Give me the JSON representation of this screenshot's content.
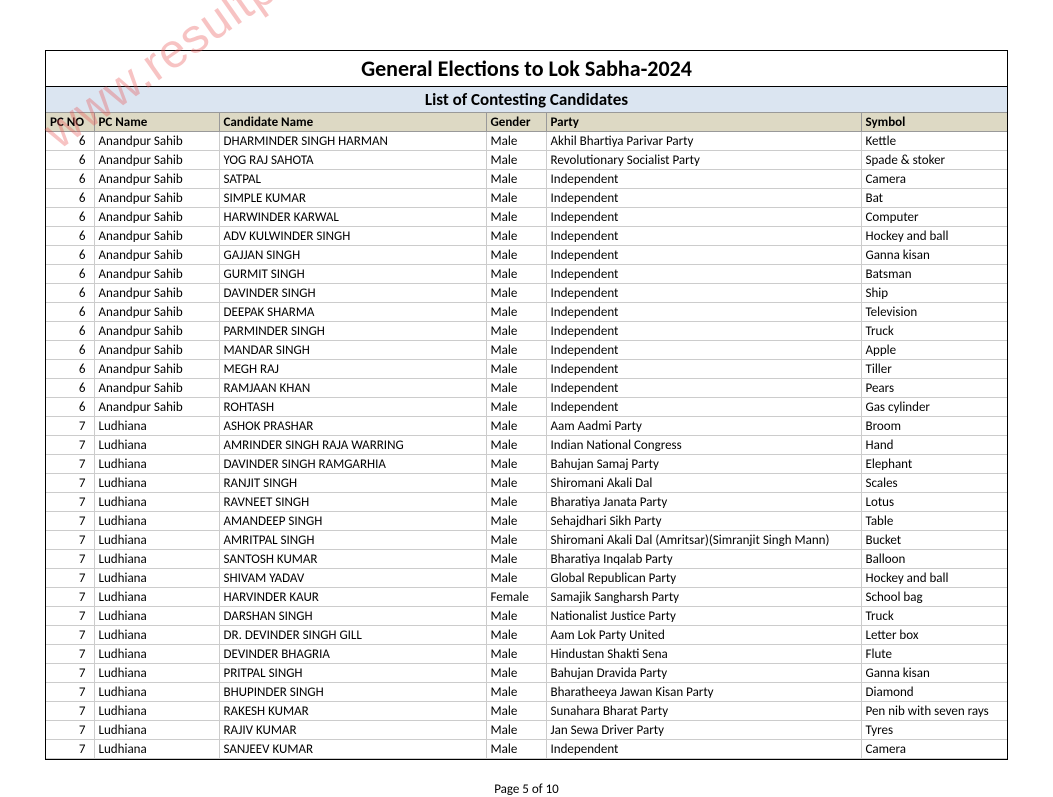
{
  "watermark_text": "www.resultpedia.in",
  "main_title": "General Elections to Lok Sabha-2024",
  "sub_title": "List of Contesting Candidates",
  "columns": [
    "PC NO",
    "PC Name",
    "Candidate Name",
    "Gender",
    "Party",
    "Symbol"
  ],
  "rows": [
    [
      "6",
      "Anandpur Sahib",
      "DHARMINDER SINGH HARMAN",
      "Male",
      "Akhil Bhartiya Parivar Party",
      "Kettle"
    ],
    [
      "6",
      "Anandpur Sahib",
      "YOG RAJ SAHOTA",
      "Male",
      "Revolutionary Socialist Party",
      "Spade & stoker"
    ],
    [
      "6",
      "Anandpur Sahib",
      "SATPAL",
      "Male",
      "Independent",
      "Camera"
    ],
    [
      "6",
      "Anandpur Sahib",
      "SIMPLE KUMAR",
      "Male",
      "Independent",
      "Bat"
    ],
    [
      "6",
      "Anandpur Sahib",
      "HARWINDER KARWAL",
      "Male",
      "Independent",
      "Computer"
    ],
    [
      "6",
      "Anandpur Sahib",
      "ADV KULWINDER SINGH",
      "Male",
      "Independent",
      "Hockey and ball"
    ],
    [
      "6",
      "Anandpur Sahib",
      "GAJJAN SINGH",
      "Male",
      "Independent",
      "Ganna kisan"
    ],
    [
      "6",
      "Anandpur Sahib",
      "GURMIT SINGH",
      "Male",
      "Independent",
      "Batsman"
    ],
    [
      "6",
      "Anandpur Sahib",
      "DAVINDER SINGH",
      "Male",
      "Independent",
      "Ship"
    ],
    [
      "6",
      "Anandpur Sahib",
      "DEEPAK SHARMA",
      "Male",
      "Independent",
      "Television"
    ],
    [
      "6",
      "Anandpur Sahib",
      "PARMINDER SINGH",
      "Male",
      "Independent",
      "Truck"
    ],
    [
      "6",
      "Anandpur Sahib",
      "MANDAR SINGH",
      "Male",
      "Independent",
      "Apple"
    ],
    [
      "6",
      "Anandpur Sahib",
      "MEGH RAJ",
      "Male",
      "Independent",
      "Tiller"
    ],
    [
      "6",
      "Anandpur Sahib",
      "RAMJAAN KHAN",
      "Male",
      "Independent",
      "Pears"
    ],
    [
      "6",
      "Anandpur Sahib",
      "ROHTASH",
      "Male",
      "Independent",
      "Gas cylinder"
    ],
    [
      "7",
      "Ludhiana",
      "ASHOK PRASHAR",
      "Male",
      "Aam Aadmi Party",
      "Broom"
    ],
    [
      "7",
      "Ludhiana",
      "AMRINDER SINGH RAJA WARRING",
      "Male",
      "Indian National Congress",
      "Hand"
    ],
    [
      "7",
      "Ludhiana",
      "DAVINDER SINGH RAMGARHIA",
      "Male",
      "Bahujan Samaj Party",
      "Elephant"
    ],
    [
      "7",
      "Ludhiana",
      "RANJIT SINGH",
      "Male",
      "Shiromani Akali Dal",
      "Scales"
    ],
    [
      "7",
      "Ludhiana",
      "RAVNEET SINGH",
      "Male",
      "Bharatiya Janata Party",
      "Lotus"
    ],
    [
      "7",
      "Ludhiana",
      "AMANDEEP SINGH",
      "Male",
      "Sehajdhari Sikh Party",
      "Table"
    ],
    [
      "7",
      "Ludhiana",
      "AMRITPAL SINGH",
      "Male",
      "Shiromani Akali Dal (Amritsar)(Simranjit Singh Mann)",
      "Bucket"
    ],
    [
      "7",
      "Ludhiana",
      "SANTOSH KUMAR",
      "Male",
      "Bharatiya Inqalab Party",
      "Balloon"
    ],
    [
      "7",
      "Ludhiana",
      "SHIVAM YADAV",
      "Male",
      "Global Republican Party",
      "Hockey and ball"
    ],
    [
      "7",
      "Ludhiana",
      "HARVINDER KAUR",
      "Female",
      "Samajik Sangharsh Party",
      "School bag"
    ],
    [
      "7",
      "Ludhiana",
      "DARSHAN SINGH",
      "Male",
      "Nationalist Justice Party",
      "Truck"
    ],
    [
      "7",
      "Ludhiana",
      "DR. DEVINDER SINGH GILL",
      "Male",
      "Aam Lok Party United",
      "Letter box"
    ],
    [
      "7",
      "Ludhiana",
      "DEVINDER BHAGRIA",
      "Male",
      "Hindustan Shakti Sena",
      "Flute"
    ],
    [
      "7",
      "Ludhiana",
      "PRITPAL SINGH",
      "Male",
      "Bahujan Dravida Party",
      "Ganna kisan"
    ],
    [
      "7",
      "Ludhiana",
      "BHUPINDER SINGH",
      "Male",
      "Bharatheeya Jawan Kisan Party",
      "Diamond"
    ],
    [
      "7",
      "Ludhiana",
      "RAKESH KUMAR",
      "Male",
      "Sunahara Bharat Party",
      "Pen nib with seven rays"
    ],
    [
      "7",
      "Ludhiana",
      "RAJIV KUMAR",
      "Male",
      "Jan Sewa Driver Party",
      "Tyres"
    ],
    [
      "7",
      "Ludhiana",
      "SANJEEV KUMAR",
      "Male",
      "Independent",
      "Camera"
    ]
  ],
  "footer": "Page 5 of 10",
  "colors": {
    "header_bg": "#ddd9c4",
    "subtitle_bg": "#dbe5f1",
    "border": "#000000",
    "grid": "#cccccc",
    "watermark": "rgba(233,84,84,0.35)"
  }
}
